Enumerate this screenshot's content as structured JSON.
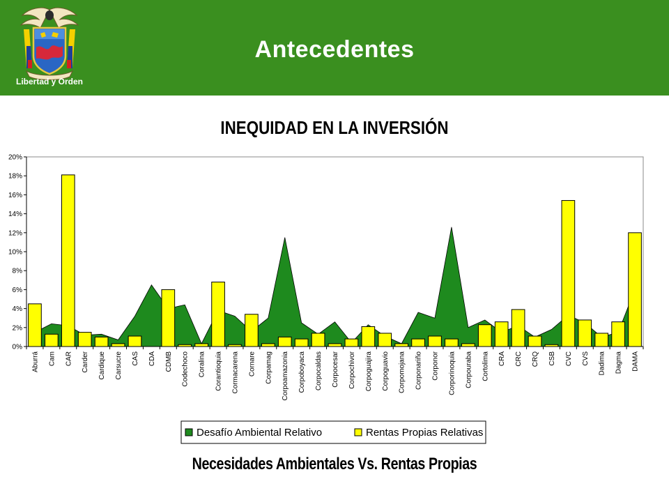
{
  "header": {
    "title": "Antecedentes",
    "logo_text": "Libertad y Orden",
    "background": "#3a8f1f"
  },
  "subtitle": "INEQUIDAD EN LA INVERSIÓN",
  "footer_caption": "Necesidades Ambientales Vs. Rentas Propias",
  "chart_data": {
    "type": "bar",
    "title": "",
    "xlabel": "",
    "ylabel": "",
    "ylim": [
      0,
      20
    ],
    "y_ticks": [
      "0%",
      "2%",
      "4%",
      "6%",
      "8%",
      "10%",
      "12%",
      "14%",
      "16%",
      "18%",
      "20%"
    ],
    "legend_position": "bottom",
    "grid": false,
    "categories": [
      "Aburrá",
      "Cam",
      "CAR",
      "Carder",
      "Cardique",
      "Carsucre",
      "CAS",
      "CDA",
      "CDMB",
      "Codechoco",
      "Coralina",
      "Corantioquia",
      "Cormacarena",
      "Cornare",
      "Corpamag",
      "Corpoamazonia",
      "Corpoboyaca",
      "Corpocaldas",
      "Corpocesar",
      "Corpochivor",
      "Corpoguajira",
      "Corpoguavio",
      "Corpomojana",
      "Corponariño",
      "Corponor",
      "Corporinoquia",
      "Corpouraba",
      "Cortolima",
      "CRA",
      "CRC",
      "CRQ",
      "CSB",
      "CVC",
      "CVS",
      "Dadima",
      "Dagma",
      "DAMA"
    ],
    "series": [
      {
        "name": "Desafío Ambiental Relativo",
        "render": "area",
        "color": "#1e8a1e",
        "values": [
          1.5,
          2.4,
          2.2,
          1.2,
          1.3,
          0.7,
          3.2,
          6.5,
          4.0,
          4.4,
          0.3,
          3.8,
          3.2,
          1.6,
          3.0,
          11.5,
          2.5,
          1.3,
          2.6,
          0.4,
          2.3,
          1.1,
          0.3,
          3.6,
          3.0,
          12.6,
          2.0,
          2.8,
          1.5,
          2.2,
          1.0,
          1.8,
          3.3,
          2.5,
          1.0,
          1.5,
          6.0
        ]
      },
      {
        "name": "Rentas Propias Relativas",
        "render": "bar",
        "color": "#ffff00",
        "values": [
          4.5,
          1.3,
          18.1,
          1.5,
          1.0,
          0.3,
          1.1,
          0.0,
          6.0,
          0.2,
          0.3,
          6.8,
          0.2,
          3.4,
          0.3,
          1.0,
          0.8,
          1.4,
          0.3,
          0.8,
          2.1,
          1.4,
          0.3,
          0.8,
          1.1,
          0.8,
          0.3,
          2.3,
          2.6,
          3.9,
          1.1,
          0.2,
          15.4,
          2.8,
          1.4,
          2.6,
          12.0
        ]
      }
    ]
  }
}
